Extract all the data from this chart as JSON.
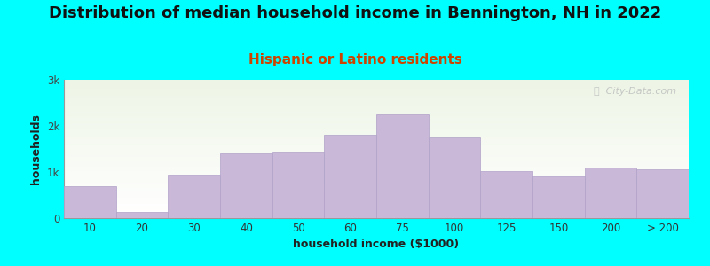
{
  "title": "Distribution of median household income in Bennington, NH in 2022",
  "subtitle": "Hispanic or Latino residents",
  "xlabel": "household income ($1000)",
  "ylabel": "households",
  "background_color": "#00FFFF",
  "bar_color": "#c9b8d8",
  "bar_edge_color": "#b0a0c8",
  "categories": [
    "10",
    "20",
    "30",
    "40",
    "50",
    "60",
    "75",
    "100",
    "125",
    "150",
    "200",
    "> 200"
  ],
  "values": [
    700,
    130,
    950,
    1400,
    1450,
    1800,
    2250,
    1750,
    1020,
    900,
    1100,
    1050
  ],
  "ylim": [
    0,
    3000
  ],
  "yticks": [
    0,
    1000,
    2000,
    3000
  ],
  "ytick_labels": [
    "0",
    "1k",
    "2k",
    "3k"
  ],
  "title_fontsize": 13,
  "subtitle_fontsize": 11,
  "subtitle_color": "#cc4400",
  "axis_label_fontsize": 9,
  "tick_fontsize": 8.5,
  "watermark": "ⓘ  City-Data.com"
}
